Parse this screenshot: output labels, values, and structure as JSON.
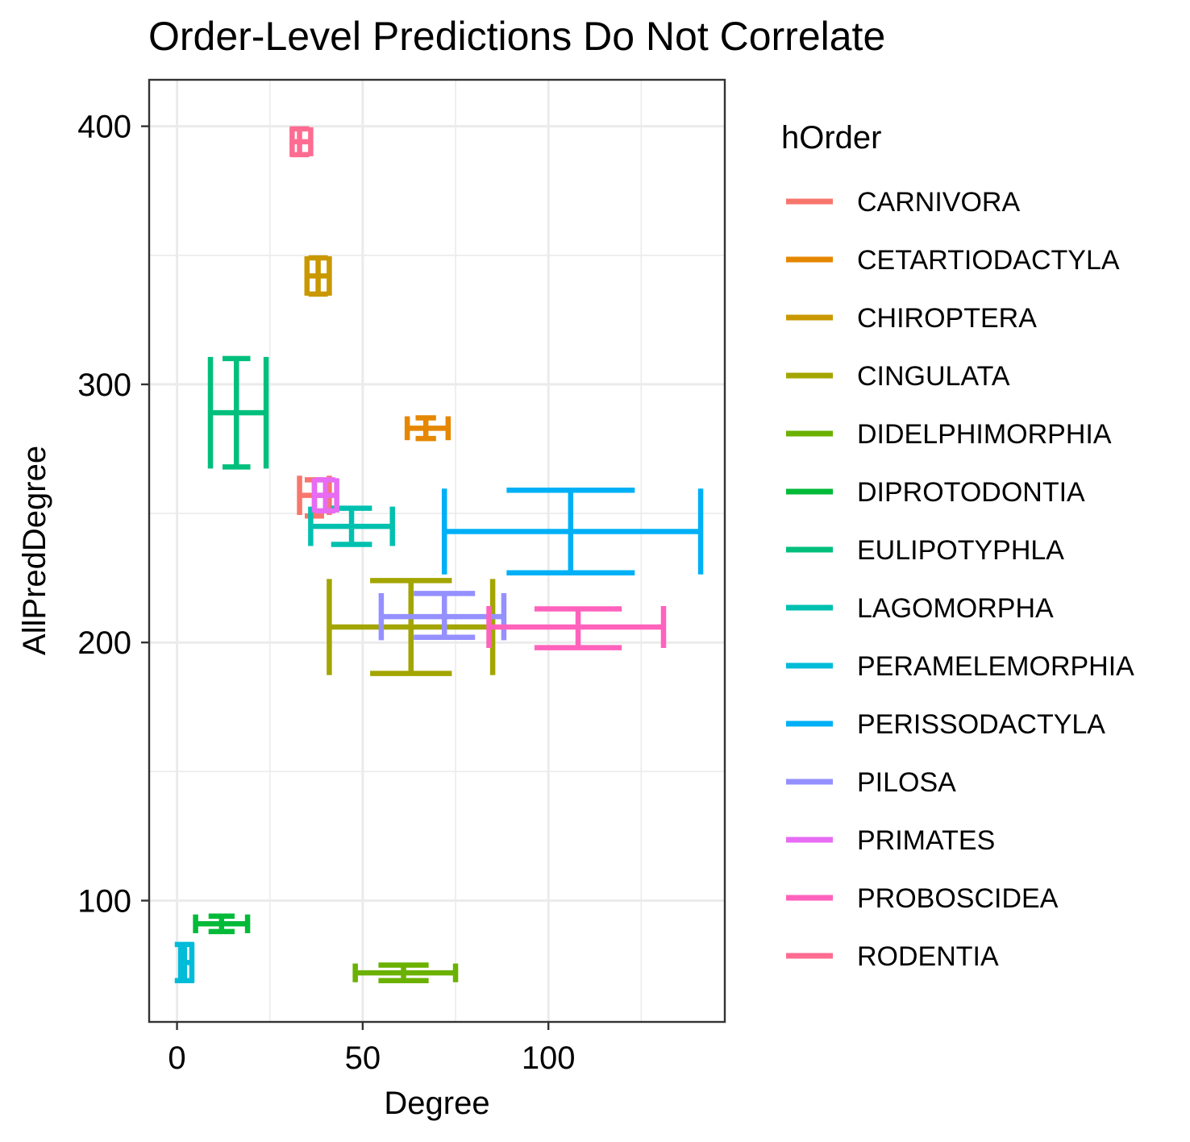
{
  "chart_data": {
    "type": "errorbar",
    "title": "Order-Level Predictions Do Not Correlate",
    "xlabel": "Degree",
    "ylabel": "AllPredDegree",
    "xlim": [
      -7.5,
      147.5
    ],
    "ylim": [
      53,
      418
    ],
    "x_ticks": [
      0,
      50,
      100
    ],
    "y_ticks": [
      100,
      200,
      300,
      400
    ],
    "grid": true,
    "legend_title": "hOrder",
    "legend_position": "right",
    "series": [
      {
        "name": "CARNIVORA",
        "color": "#F8766D",
        "x": 37,
        "x_min": 33,
        "x_max": 41,
        "y": 257,
        "y_min": 249,
        "y_max": 263
      },
      {
        "name": "CETARTIODACTYLA",
        "color": "#E58700",
        "x": 67,
        "x_min": 62,
        "x_max": 73,
        "y": 283,
        "y_min": 279,
        "y_max": 287
      },
      {
        "name": "CHIROPTERA",
        "color": "#C99800",
        "x": 38,
        "x_min": 35,
        "x_max": 41,
        "y": 342,
        "y_min": 335,
        "y_max": 349
      },
      {
        "name": "CINGULATA",
        "color": "#A3A500",
        "x": 63,
        "x_min": 41,
        "x_max": 85,
        "y": 206,
        "y_min": 188,
        "y_max": 224
      },
      {
        "name": "DIDELPHIMORPHIA",
        "color": "#6BB100",
        "x": 61,
        "x_min": 48,
        "x_max": 75,
        "y": 72,
        "y_min": 69,
        "y_max": 75
      },
      {
        "name": "DIPROTODONTIA",
        "color": "#00BA38",
        "x": 12,
        "x_min": 5,
        "x_max": 19,
        "y": 91,
        "y_min": 88,
        "y_max": 94
      },
      {
        "name": "EULIPOTYPHLA",
        "color": "#00BF7D",
        "x": 16,
        "x_min": 9,
        "x_max": 24,
        "y": 289,
        "y_min": 268,
        "y_max": 310
      },
      {
        "name": "LAGOMORPHA",
        "color": "#00C0AF",
        "x": 47,
        "x_min": 36,
        "x_max": 58,
        "y": 245,
        "y_min": 238,
        "y_max": 252
      },
      {
        "name": "PERAMELEMORPHIA",
        "color": "#00BCD8",
        "x": 2,
        "x_min": 1,
        "x_max": 4,
        "y": 76,
        "y_min": 69,
        "y_max": 83
      },
      {
        "name": "PERISSODACTYLA",
        "color": "#00B0F6",
        "x": 106,
        "x_min": 72,
        "x_max": 141,
        "y": 243,
        "y_min": 227,
        "y_max": 259
      },
      {
        "name": "PILOSA",
        "color": "#9590FF",
        "x": 72,
        "x_min": 55,
        "x_max": 88,
        "y": 210,
        "y_min": 202,
        "y_max": 219
      },
      {
        "name": "PRIMATES",
        "color": "#E76BF3",
        "x": 40,
        "x_min": 37,
        "x_max": 43,
        "y": 257,
        "y_min": 251,
        "y_max": 263
      },
      {
        "name": "PROBOSCIDEA",
        "color": "#FF62BC",
        "x": 108,
        "x_min": 84,
        "x_max": 131,
        "y": 206,
        "y_min": 198,
        "y_max": 213
      },
      {
        "name": "RODENTIA",
        "color": "#FF6C91",
        "x": 33,
        "x_min": 31,
        "x_max": 36,
        "y": 394,
        "y_min": 389,
        "y_max": 399
      }
    ]
  }
}
